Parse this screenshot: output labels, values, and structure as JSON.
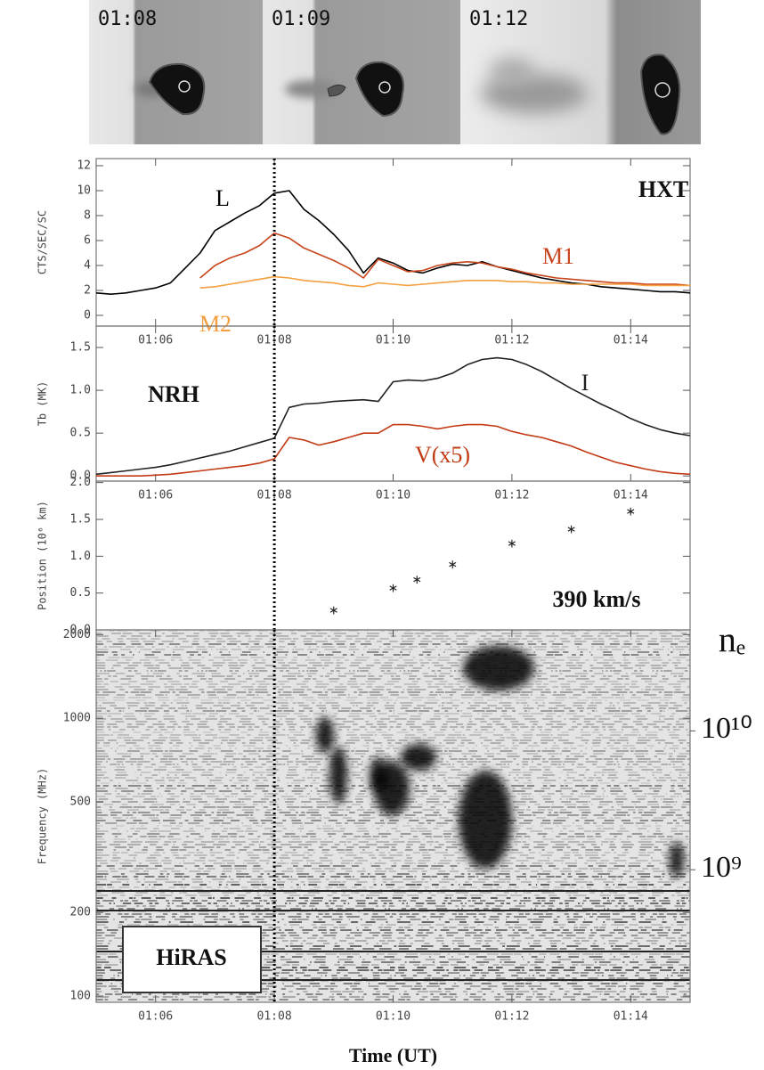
{
  "thumbnails": {
    "labels": [
      "01:08",
      "01:09",
      "01:12"
    ]
  },
  "chart_data": [
    {
      "type": "line",
      "ylabel": "CTS/SEC/SC",
      "annotation": "HXT",
      "xlim": [
        65,
        75
      ],
      "xticks": [
        {
          "value": 66,
          "label": "01:06"
        },
        {
          "value": 68,
          "label": "01:08"
        },
        {
          "value": 70,
          "label": "01:10"
        },
        {
          "value": 72,
          "label": "01:12"
        },
        {
          "value": 74,
          "label": "01:14"
        }
      ],
      "ylim": [
        -0.86,
        12.57
      ],
      "yticks": [
        0,
        2,
        4,
        6,
        8,
        10,
        12
      ],
      "vline": 68,
      "x": [
        65,
        65.25,
        65.5,
        65.75,
        66,
        66.25,
        66.5,
        66.75,
        67,
        67.25,
        67.5,
        67.75,
        68,
        68.25,
        68.5,
        68.75,
        69,
        69.25,
        69.5,
        69.75,
        70,
        70.25,
        70.5,
        70.75,
        71,
        71.25,
        71.5,
        71.75,
        72,
        72.25,
        72.5,
        72.75,
        73,
        73.25,
        73.5,
        73.75,
        74,
        74.25,
        74.5,
        74.75,
        75
      ],
      "series": [
        {
          "name": "L",
          "color": "#000000",
          "values": [
            1.8,
            1.7,
            1.8,
            2.0,
            2.2,
            2.6,
            3.8,
            5.0,
            6.8,
            7.5,
            8.2,
            8.8,
            9.8,
            10.0,
            8.5,
            7.6,
            6.5,
            5.2,
            3.4,
            4.6,
            4.2,
            3.6,
            3.4,
            3.8,
            4.1,
            4.0,
            4.3,
            3.9,
            3.6,
            3.3,
            3.0,
            2.8,
            2.6,
            2.5,
            2.3,
            2.2,
            2.1,
            2.0,
            1.9,
            1.9,
            1.8
          ]
        },
        {
          "name": "M1",
          "color": "#c8441a",
          "values": [
            null,
            null,
            null,
            null,
            null,
            null,
            null,
            3.0,
            4.0,
            4.6,
            5.0,
            5.6,
            6.6,
            6.2,
            5.4,
            4.9,
            4.4,
            3.8,
            3.0,
            4.5,
            4.0,
            3.5,
            3.6,
            4.0,
            4.2,
            4.3,
            4.2,
            3.9,
            3.7,
            3.4,
            3.2,
            3.0,
            2.9,
            2.8,
            2.7,
            2.6,
            2.6,
            2.5,
            2.5,
            2.5,
            2.4
          ]
        },
        {
          "name": "M2",
          "color": "#f4a040",
          "values": [
            null,
            null,
            null,
            null,
            null,
            null,
            null,
            2.2,
            2.3,
            2.5,
            2.7,
            2.9,
            3.1,
            3.0,
            2.8,
            2.7,
            2.6,
            2.4,
            2.3,
            2.6,
            2.5,
            2.4,
            2.5,
            2.6,
            2.7,
            2.8,
            2.8,
            2.8,
            2.7,
            2.7,
            2.6,
            2.6,
            2.5,
            2.5,
            2.5,
            2.5,
            2.5,
            2.4,
            2.4,
            2.4,
            2.4
          ]
        }
      ]
    },
    {
      "type": "line",
      "ylabel": "Tb (MK)",
      "annotation": "NRH",
      "xlim": [
        65,
        75
      ],
      "xticks": [
        {
          "value": 66,
          "label": "01:06"
        },
        {
          "value": 68,
          "label": "01:08"
        },
        {
          "value": 70,
          "label": "01:10"
        },
        {
          "value": 72,
          "label": "01:12"
        },
        {
          "value": 74,
          "label": "01:14"
        }
      ],
      "ylim": [
        -0.06,
        1.75
      ],
      "yticks": [
        {
          "value": 0,
          "label": "0.0"
        },
        0.5,
        {
          "value": 1,
          "label": "1.0"
        },
        1.5
      ],
      "vline": 68,
      "x": [
        65,
        65.25,
        65.5,
        65.75,
        66,
        66.25,
        66.5,
        66.75,
        67,
        67.25,
        67.5,
        67.75,
        68,
        68.25,
        68.5,
        68.75,
        69,
        69.25,
        69.5,
        69.75,
        70,
        70.25,
        70.5,
        70.75,
        71,
        71.25,
        71.5,
        71.75,
        72,
        72.25,
        72.5,
        72.75,
        73,
        73.25,
        73.5,
        73.75,
        74,
        74.25,
        74.5,
        74.75,
        75
      ],
      "series": [
        {
          "name": "I",
          "color": "#222222",
          "values": [
            0.02,
            0.04,
            0.06,
            0.08,
            0.1,
            0.13,
            0.17,
            0.21,
            0.25,
            0.29,
            0.34,
            0.39,
            0.44,
            0.8,
            0.84,
            0.85,
            0.87,
            0.88,
            0.89,
            0.87,
            1.1,
            1.12,
            1.11,
            1.14,
            1.2,
            1.3,
            1.36,
            1.38,
            1.36,
            1.3,
            1.22,
            1.12,
            1.02,
            0.93,
            0.84,
            0.76,
            0.67,
            0.6,
            0.54,
            0.5,
            0.47
          ]
        },
        {
          "name": "V(x5)",
          "color": "#c23b14",
          "values": [
            0,
            0,
            0,
            0,
            0.01,
            0.02,
            0.04,
            0.06,
            0.08,
            0.1,
            0.12,
            0.15,
            0.2,
            0.45,
            0.42,
            0.36,
            0.4,
            0.45,
            0.5,
            0.5,
            0.6,
            0.6,
            0.58,
            0.55,
            0.58,
            0.6,
            0.6,
            0.58,
            0.52,
            0.48,
            0.45,
            0.4,
            0.35,
            0.28,
            0.22,
            0.16,
            0.12,
            0.08,
            0.05,
            0.03,
            0.02
          ]
        }
      ]
    },
    {
      "type": "scatter",
      "ylabel": "Position (10⁶ km)",
      "annotation": "390 km/s",
      "xlim": [
        65,
        75
      ],
      "ylim": [
        0,
        2.02
      ],
      "yticks": [
        {
          "value": 0,
          "label": "0.0"
        },
        0.5,
        {
          "value": 1,
          "label": "1.0"
        },
        1.5,
        {
          "value": 2,
          "label": "2.0"
        }
      ],
      "vline": 68,
      "x": [
        69.0,
        70.0,
        70.4,
        71.0,
        72.0,
        73.0,
        74.0
      ],
      "values": [
        0.26,
        0.56,
        0.68,
        0.88,
        1.17,
        1.36,
        1.6
      ],
      "color": "#222222"
    },
    {
      "type": "spectrogram",
      "ylabel": "Frequency (MHz)",
      "xlabel": "Time (UT)",
      "annotation": "HiRAS",
      "xlim": [
        65,
        75
      ],
      "xticks": [
        {
          "value": 66,
          "label": "01:06"
        },
        {
          "value": 68,
          "label": "01:08"
        },
        {
          "value": 70,
          "label": "01:10"
        },
        {
          "value": 72,
          "label": "01:12"
        },
        {
          "value": 74,
          "label": "01:14"
        }
      ],
      "ylim": [
        95,
        2080
      ],
      "ylog": true,
      "yticks": [
        100,
        200,
        500,
        1000,
        2000
      ],
      "vline": 68,
      "y2label": "nₑ",
      "y2lim": [
        111000000,
        53400000000
      ],
      "y2log": true,
      "y2ticks": [
        {
          "value": 1000000000,
          "label": "10⁹"
        },
        {
          "value": 10000000000,
          "label": "10¹⁰"
        }
      ]
    }
  ]
}
